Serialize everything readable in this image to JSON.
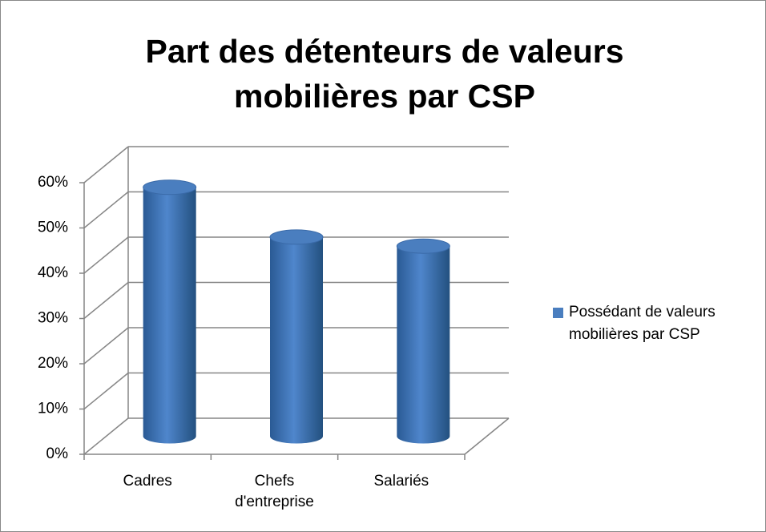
{
  "chart_data": {
    "type": "bar3d",
    "title": "Part des détenteurs de valeurs mobilières par CSP",
    "categories": [
      "Cadres",
      "Chefs d'entreprise",
      "Salariés"
    ],
    "series": [
      {
        "name": "Possédant de valeurs mobilières par CSP",
        "color": "#4a7ebf",
        "values": [
          55,
          44,
          42
        ]
      }
    ],
    "ylim": [
      0,
      60
    ],
    "yticks": [
      {
        "value": 0,
        "label": "0%"
      },
      {
        "value": 10,
        "label": "10%"
      },
      {
        "value": 20,
        "label": "20%"
      },
      {
        "value": 30,
        "label": "30%"
      },
      {
        "value": 40,
        "label": "40%"
      },
      {
        "value": 50,
        "label": "50%"
      },
      {
        "value": 60,
        "label": "60%"
      }
    ],
    "grid": true
  }
}
